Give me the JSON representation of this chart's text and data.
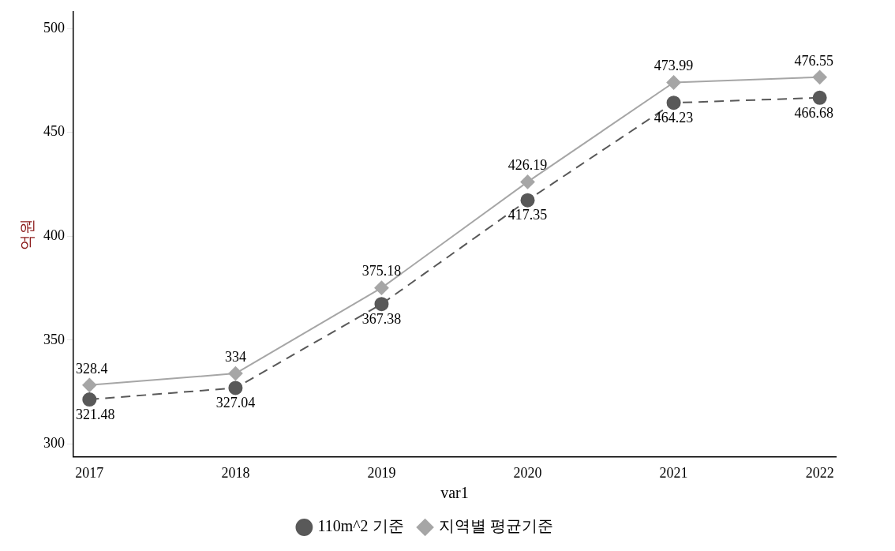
{
  "chart_data": {
    "type": "line",
    "xlabel": "var1",
    "ylabel": "억원",
    "x": [
      2017,
      2018,
      2019,
      2020,
      2021,
      2022
    ],
    "xlim": [
      2016.89,
      2022.11
    ],
    "xticks": [
      2017,
      2018,
      2019,
      2020,
      2021,
      2022
    ],
    "ylim": [
      294,
      508
    ],
    "yticks": [
      300,
      350,
      400,
      450,
      500
    ],
    "grid": false,
    "legend": "bottom",
    "data_labels": true,
    "series": [
      {
        "name": "110m^2 기준",
        "color": "#595959",
        "marker": "circle",
        "line_style": "dashed",
        "values": [
          321.48,
          327.04,
          367.38,
          417.35,
          464.23,
          466.68
        ]
      },
      {
        "name": "지역별 평균기준",
        "color": "#a6a6a6",
        "marker": "diamond",
        "line_style": "solid",
        "values": [
          328.4,
          334,
          375.18,
          426.19,
          473.99,
          476.55
        ]
      }
    ]
  }
}
